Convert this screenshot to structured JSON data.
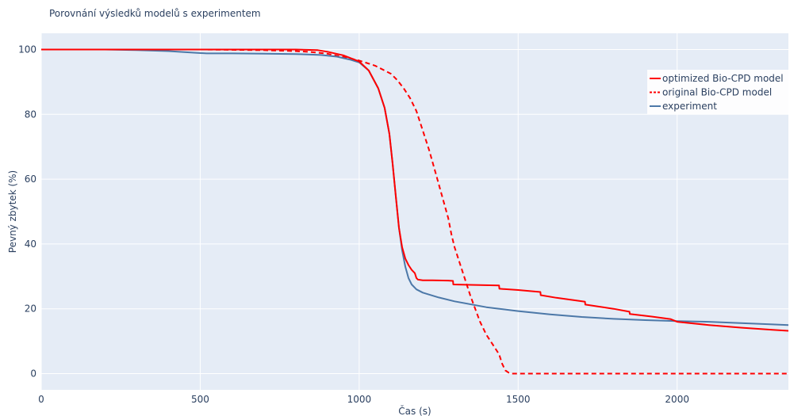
{
  "chart_data": {
    "type": "line",
    "title": "Porovnání výsledků modelů s experimentem",
    "xlabel": "Čas (s)",
    "ylabel": "Pevný zbytek (%)",
    "xlim": [
      0,
      2350
    ],
    "ylim": [
      -5,
      105
    ],
    "x_ticks": [
      0,
      500,
      1000,
      1500,
      2000
    ],
    "y_ticks": [
      0,
      20,
      40,
      60,
      80,
      100
    ],
    "grid": true,
    "legend_position": "top-right",
    "colors": {
      "plot_bg": "#e5ecf6",
      "grid": "#ffffff",
      "text": "#2a3f5f"
    },
    "series": [
      {
        "name": "optimized Bio-CPD model",
        "color": "#ff0000",
        "dash": "solid",
        "x": [
          0,
          300,
          600,
          800,
          870,
          900,
          950,
          1000,
          1030,
          1060,
          1080,
          1095,
          1105,
          1115,
          1125,
          1135,
          1145,
          1155,
          1165,
          1175,
          1180,
          1185,
          1200,
          1230,
          1280,
          1295,
          1296,
          1350,
          1440,
          1441,
          1500,
          1570,
          1571,
          1620,
          1710,
          1711,
          1800,
          1850,
          1851,
          1920,
          1980,
          2000,
          2100,
          2200,
          2300,
          2350
        ],
        "y": [
          100,
          100,
          100,
          100,
          99.8,
          99.3,
          98.2,
          96.3,
          93.5,
          88,
          82,
          74,
          65,
          55,
          45,
          39,
          35.5,
          33.5,
          32,
          31,
          29.5,
          29,
          28.8,
          28.8,
          28.7,
          28.6,
          27.5,
          27.4,
          27.2,
          26.2,
          25.8,
          25.2,
          24.2,
          23.4,
          22.2,
          21.3,
          20,
          19.1,
          18.4,
          17.6,
          16.8,
          16,
          15,
          14.2,
          13.5,
          13.2
        ]
      },
      {
        "name": "original Bio-CPD model",
        "color": "#ff0000",
        "dash": "dashed",
        "x": [
          0,
          500,
          700,
          800,
          850,
          900,
          950,
          1000,
          1050,
          1080,
          1100,
          1120,
          1140,
          1160,
          1180,
          1200,
          1220,
          1240,
          1260,
          1280,
          1290,
          1295,
          1300,
          1320,
          1350,
          1380,
          1400,
          1420,
          1440,
          1450,
          1460,
          1470,
          1480,
          1500,
          1600,
          1800,
          2000,
          2350
        ],
        "y": [
          100,
          100,
          99.8,
          99.5,
          99.2,
          98.7,
          97.7,
          96.6,
          95,
          93.5,
          92.5,
          90.5,
          88,
          85,
          81,
          75,
          69,
          62,
          55,
          48,
          43,
          41,
          39,
          33,
          24,
          16,
          12,
          9,
          6,
          3,
          1,
          0.3,
          0,
          0,
          0,
          0,
          0,
          0
        ]
      },
      {
        "name": "experiment",
        "color": "#4c78a8",
        "dash": "solid",
        "x": [
          0,
          200,
          300,
          400,
          480,
          520,
          600,
          700,
          800,
          880,
          930,
          970,
          1000,
          1030,
          1060,
          1080,
          1095,
          1105,
          1115,
          1125,
          1135,
          1145,
          1155,
          1165,
          1180,
          1200,
          1250,
          1300,
          1400,
          1500,
          1600,
          1700,
          1800,
          1900,
          2000,
          2100,
          2200,
          2300,
          2350
        ],
        "y": [
          100,
          100,
          99.8,
          99.5,
          99,
          98.8,
          98.8,
          98.7,
          98.6,
          98.3,
          97.8,
          96.9,
          96,
          93.5,
          88,
          82,
          74,
          65,
          55,
          45,
          38,
          33,
          29.5,
          27.5,
          26,
          25,
          23.5,
          22.3,
          20.5,
          19.3,
          18.3,
          17.5,
          16.9,
          16.5,
          16.2,
          16,
          15.6,
          15.2,
          15
        ]
      }
    ]
  }
}
